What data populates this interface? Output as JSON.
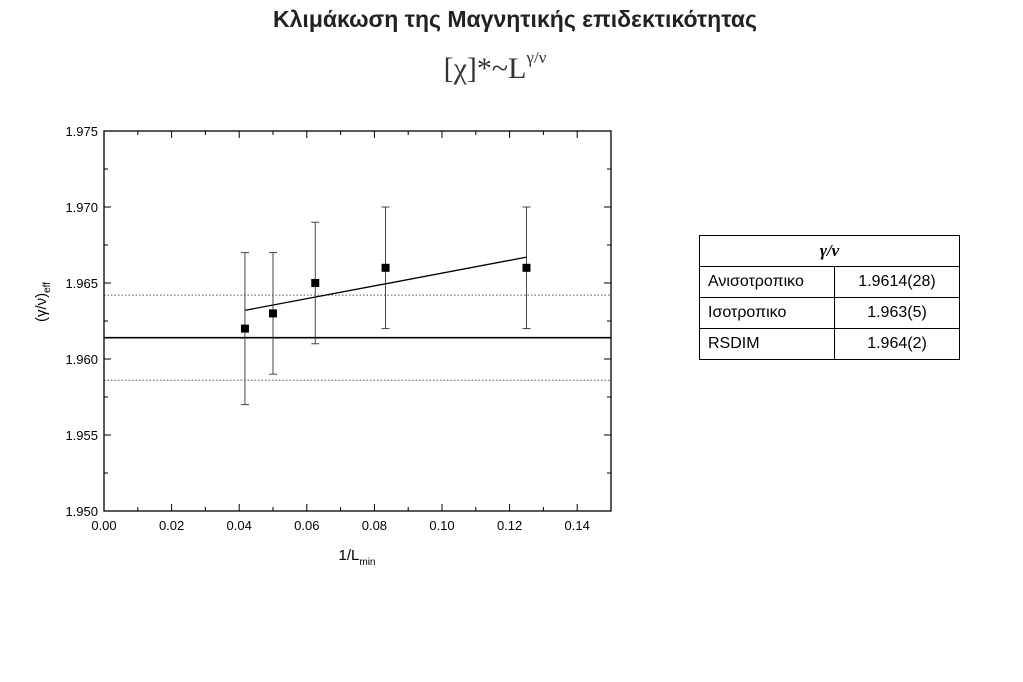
{
  "title": "Κλιμάκωση της Μαγνητικής επιδεκτικότητας",
  "subtitle": {
    "base": "[χ]*~L",
    "exponent": "γ/ν"
  },
  "chart_data": {
    "type": "scatter",
    "xlabel": "1/L",
    "xlabel_sub": "min",
    "ylabel": "(γ/ν)",
    "ylabel_sub": "eff",
    "xlim": [
      0.0,
      0.15
    ],
    "ylim": [
      1.95,
      1.975
    ],
    "x_ticks": [
      "0.00",
      "0.02",
      "0.04",
      "0.06",
      "0.08",
      "0.10",
      "0.12",
      "0.14"
    ],
    "y_ticks": [
      "1.950",
      "1.955",
      "1.960",
      "1.965",
      "1.970",
      "1.975"
    ],
    "x_tick_values": [
      0.0,
      0.02,
      0.04,
      0.06,
      0.08,
      0.1,
      0.12,
      0.14
    ],
    "y_tick_values": [
      1.95,
      1.955,
      1.96,
      1.965,
      1.97,
      1.975
    ],
    "grid": false,
    "points": [
      {
        "x": 0.0417,
        "y": 1.962,
        "err": 0.005
      },
      {
        "x": 0.05,
        "y": 1.963,
        "err": 0.004
      },
      {
        "x": 0.0625,
        "y": 1.965,
        "err": 0.004
      },
      {
        "x": 0.0833,
        "y": 1.966,
        "err": 0.004
      },
      {
        "x": 0.125,
        "y": 1.966,
        "err": 0.004
      }
    ],
    "fit_line": {
      "x": [
        0.0417,
        0.125
      ],
      "y": [
        1.9632,
        1.9667
      ]
    },
    "reference_line": {
      "y": 1.9614
    },
    "reference_band": {
      "lower": 1.9586,
      "upper": 1.9642
    }
  },
  "results_table": {
    "header": "γ/ν",
    "rows": [
      {
        "name": "Ανισοτροπικο",
        "value": "1.9614(28)"
      },
      {
        "name": "Ισοτροπικο",
        "value": "1.963(5)"
      },
      {
        "name": "RSDIM",
        "value": "1.964(2)"
      }
    ]
  }
}
